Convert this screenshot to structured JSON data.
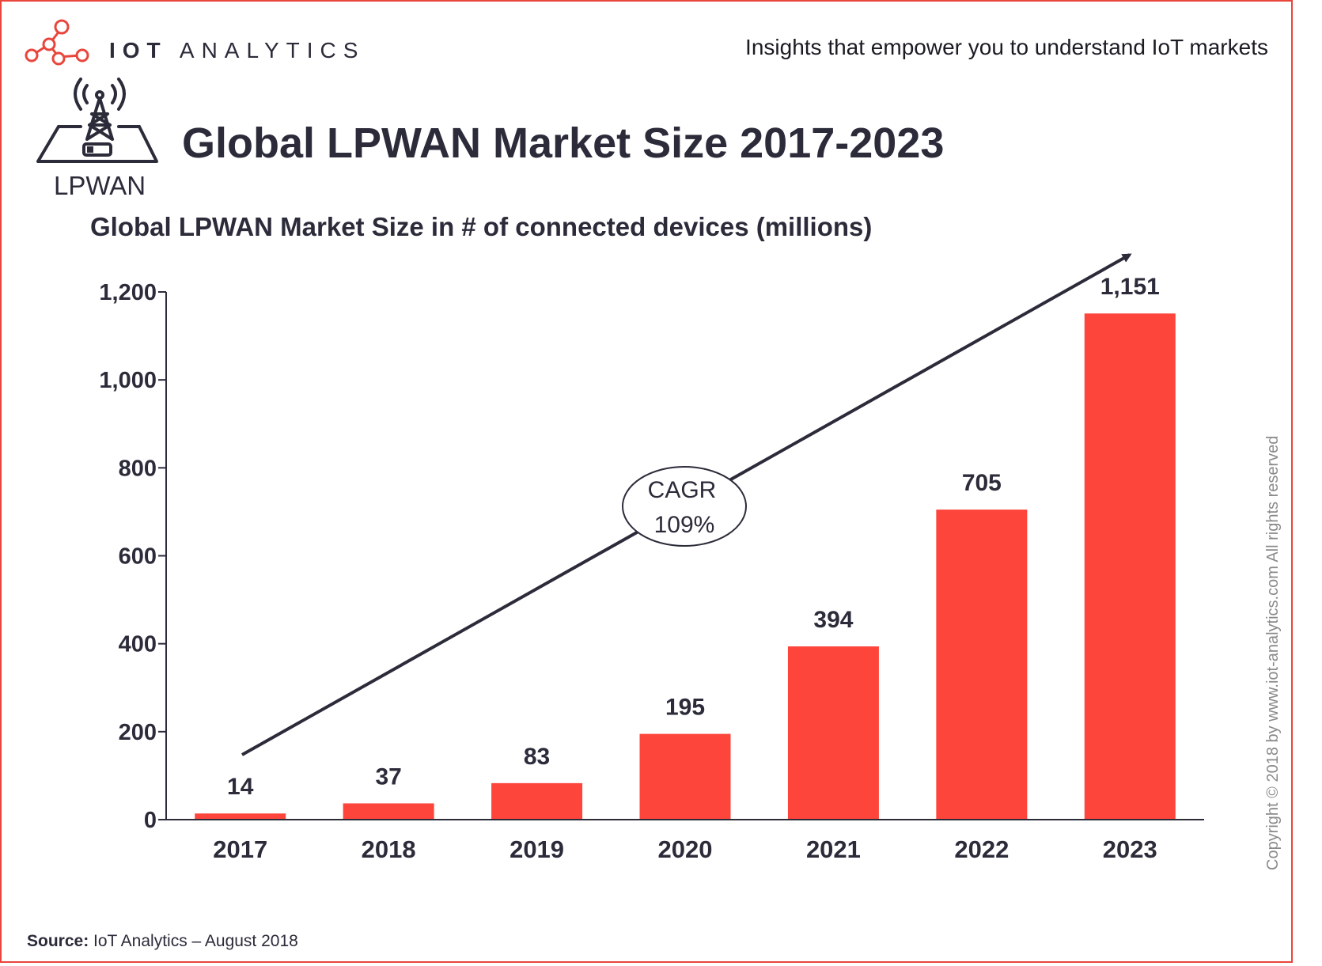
{
  "header": {
    "brand_strong": "IOT",
    "brand_light": "ANALYTICS",
    "tagline": "Insights that empower you to understand IoT markets"
  },
  "icon": {
    "name": "lpwan-tower-icon",
    "label": "LPWAN"
  },
  "colors": {
    "bar": "#fe453b",
    "frame": "#e8463c",
    "text": "#2b2b3a"
  },
  "chart_data": {
    "type": "bar",
    "title": "Global LPWAN Market Size 2017-2023",
    "subtitle": "Global LPWAN Market Size in # of connected devices (millions)",
    "categories": [
      "2017",
      "2018",
      "2019",
      "2020",
      "2021",
      "2022",
      "2023"
    ],
    "values": [
      14,
      37,
      83,
      195,
      394,
      705,
      1151
    ],
    "value_labels": [
      "14",
      "37",
      "83",
      "195",
      "394",
      "705",
      "1,151"
    ],
    "yticks": [
      0,
      200,
      400,
      600,
      800,
      1000,
      1200
    ],
    "ytick_labels": [
      "0",
      "200",
      "400",
      "600",
      "800",
      "1,000",
      "1,200"
    ],
    "ylim": [
      0,
      1200
    ],
    "xlabel": "",
    "ylabel": "",
    "grid": false,
    "annotation": {
      "label": "CAGR",
      "value": "109%"
    }
  },
  "footer": {
    "source_label": "Source:",
    "source_text": "IoT Analytics – August 2018",
    "copyright": "Copyright © 2018 by www.iot-analytics.com All rights reserved"
  }
}
